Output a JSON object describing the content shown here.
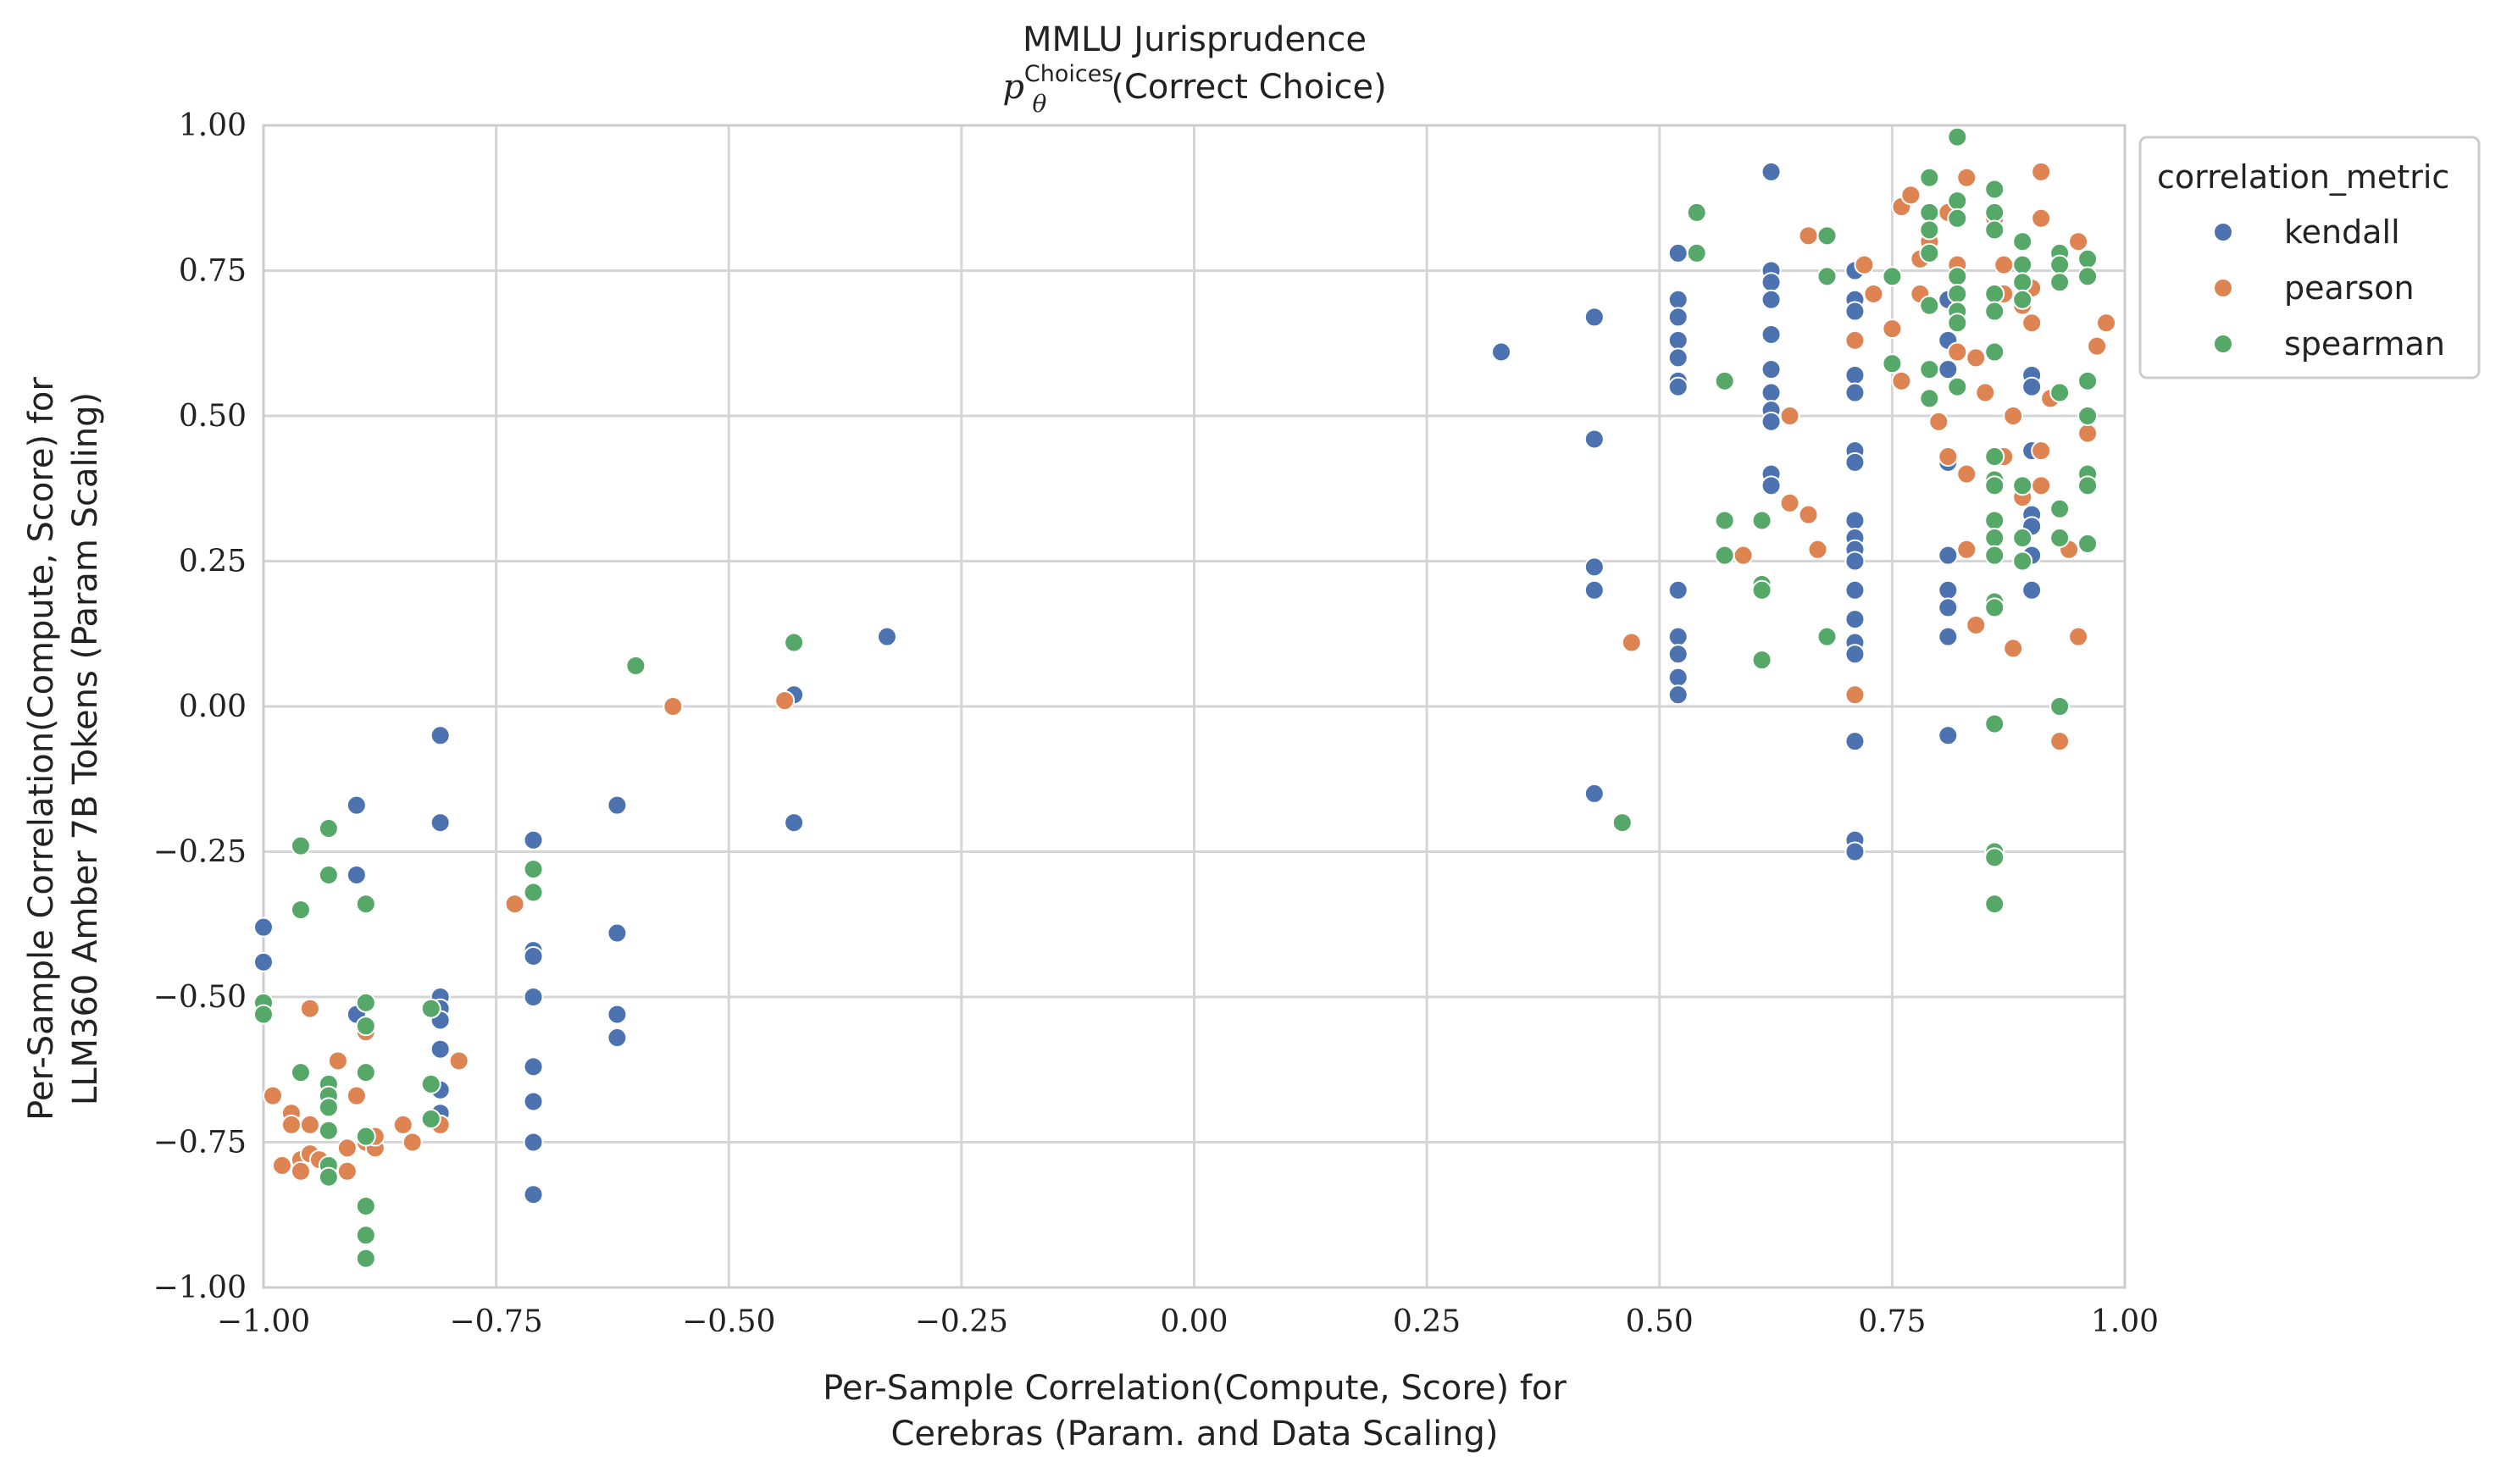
{
  "chart_data": {
    "type": "scatter",
    "title": "MMLU Jurisprudence",
    "subtitle_symbol": "p",
    "subtitle_subscript": "θ",
    "subtitle_superscript": "Choices",
    "subtitle_text": "(Correct Choice)",
    "xlabel_lines": [
      "Per-Sample Correlation(Compute, Score) for",
      "Cerebras (Param. and Data Scaling)"
    ],
    "ylabel_lines": [
      "Per-Sample Correlation(Compute, Score) for",
      "LLM360 Amber 7B Tokens (Param Scaling)"
    ],
    "xlim": [
      -1.0,
      1.0
    ],
    "ylim": [
      -1.0,
      1.0
    ],
    "xticks": [
      -1.0,
      -0.75,
      -0.5,
      -0.25,
      0.0,
      0.25,
      0.5,
      0.75,
      1.0
    ],
    "yticks": [
      -1.0,
      -0.75,
      -0.5,
      -0.25,
      0.0,
      0.25,
      0.5,
      0.75,
      1.0
    ],
    "xtick_labels": [
      "−1.00",
      "−0.75",
      "−0.50",
      "−0.25",
      "0.00",
      "0.25",
      "0.50",
      "0.75",
      "1.00"
    ],
    "ytick_labels": [
      "−1.00",
      "−0.75",
      "−0.50",
      "−0.25",
      "0.00",
      "0.25",
      "0.50",
      "0.75",
      "1.00"
    ],
    "grid": true,
    "legend": {
      "title": "correlation_metric",
      "placement": "outside-top-right"
    },
    "series": [
      {
        "name": "kendall",
        "color": "#4c72b0",
        "points": [
          [
            -1.0,
            -0.38
          ],
          [
            -1.0,
            -0.44
          ],
          [
            -0.9,
            -0.17
          ],
          [
            -0.9,
            -0.29
          ],
          [
            -0.9,
            -0.53
          ],
          [
            -0.81,
            -0.05
          ],
          [
            -0.81,
            -0.2
          ],
          [
            -0.81,
            -0.5
          ],
          [
            -0.81,
            -0.52
          ],
          [
            -0.81,
            -0.54
          ],
          [
            -0.81,
            -0.59
          ],
          [
            -0.81,
            -0.66
          ],
          [
            -0.81,
            -0.7
          ],
          [
            -0.71,
            -0.23
          ],
          [
            -0.71,
            -0.42
          ],
          [
            -0.71,
            -0.43
          ],
          [
            -0.71,
            -0.5
          ],
          [
            -0.71,
            -0.62
          ],
          [
            -0.71,
            -0.68
          ],
          [
            -0.71,
            -0.75
          ],
          [
            -0.71,
            -0.84
          ],
          [
            -0.62,
            -0.17
          ],
          [
            -0.62,
            -0.39
          ],
          [
            -0.62,
            -0.53
          ],
          [
            -0.62,
            -0.57
          ],
          [
            -0.43,
            0.02
          ],
          [
            -0.43,
            -0.2
          ],
          [
            -0.33,
            0.12
          ],
          [
            0.33,
            0.61
          ],
          [
            0.43,
            0.67
          ],
          [
            0.43,
            0.46
          ],
          [
            0.43,
            0.24
          ],
          [
            0.43,
            0.2
          ],
          [
            0.43,
            -0.15
          ],
          [
            0.52,
            0.78
          ],
          [
            0.52,
            0.7
          ],
          [
            0.52,
            0.67
          ],
          [
            0.52,
            0.63
          ],
          [
            0.52,
            0.6
          ],
          [
            0.52,
            0.56
          ],
          [
            0.52,
            0.55
          ],
          [
            0.52,
            0.2
          ],
          [
            0.52,
            0.12
          ],
          [
            0.52,
            0.09
          ],
          [
            0.52,
            0.05
          ],
          [
            0.52,
            0.02
          ],
          [
            0.62,
            0.92
          ],
          [
            0.62,
            0.75
          ],
          [
            0.62,
            0.73
          ],
          [
            0.62,
            0.7
          ],
          [
            0.62,
            0.64
          ],
          [
            0.62,
            0.58
          ],
          [
            0.62,
            0.54
          ],
          [
            0.62,
            0.51
          ],
          [
            0.62,
            0.49
          ],
          [
            0.62,
            0.4
          ],
          [
            0.62,
            0.38
          ],
          [
            0.71,
            0.75
          ],
          [
            0.71,
            0.7
          ],
          [
            0.71,
            0.68
          ],
          [
            0.71,
            0.57
          ],
          [
            0.71,
            0.54
          ],
          [
            0.71,
            0.44
          ],
          [
            0.71,
            0.42
          ],
          [
            0.71,
            0.32
          ],
          [
            0.71,
            0.29
          ],
          [
            0.71,
            0.27
          ],
          [
            0.71,
            0.25
          ],
          [
            0.71,
            0.2
          ],
          [
            0.71,
            0.15
          ],
          [
            0.71,
            0.11
          ],
          [
            0.71,
            0.09
          ],
          [
            0.71,
            -0.06
          ],
          [
            0.71,
            -0.23
          ],
          [
            0.71,
            -0.25
          ],
          [
            0.81,
            0.7
          ],
          [
            0.81,
            0.63
          ],
          [
            0.81,
            0.58
          ],
          [
            0.81,
            0.42
          ],
          [
            0.81,
            0.26
          ],
          [
            0.81,
            0.2
          ],
          [
            0.81,
            0.17
          ],
          [
            0.81,
            0.12
          ],
          [
            0.81,
            -0.05
          ],
          [
            0.9,
            0.57
          ],
          [
            0.9,
            0.55
          ],
          [
            0.9,
            0.44
          ],
          [
            0.9,
            0.33
          ],
          [
            0.9,
            0.31
          ],
          [
            0.9,
            0.26
          ],
          [
            0.9,
            0.2
          ]
        ]
      },
      {
        "name": "pearson",
        "color": "#dd8452",
        "points": [
          [
            -0.99,
            -0.67
          ],
          [
            -0.98,
            -0.79
          ],
          [
            -0.97,
            -0.7
          ],
          [
            -0.97,
            -0.72
          ],
          [
            -0.96,
            -0.78
          ],
          [
            -0.96,
            -0.8
          ],
          [
            -0.95,
            -0.52
          ],
          [
            -0.95,
            -0.72
          ],
          [
            -0.95,
            -0.77
          ],
          [
            -0.94,
            -0.78
          ],
          [
            -0.93,
            -0.68
          ],
          [
            -0.92,
            -0.61
          ],
          [
            -0.91,
            -0.76
          ],
          [
            -0.91,
            -0.8
          ],
          [
            -0.9,
            -0.67
          ],
          [
            -0.89,
            -0.75
          ],
          [
            -0.89,
            -0.56
          ],
          [
            -0.88,
            -0.76
          ],
          [
            -0.88,
            -0.74
          ],
          [
            -0.85,
            -0.72
          ],
          [
            -0.84,
            -0.75
          ],
          [
            -0.81,
            -0.72
          ],
          [
            -0.79,
            -0.61
          ],
          [
            -0.73,
            -0.34
          ],
          [
            -0.56,
            0.0
          ],
          [
            -0.44,
            0.01
          ],
          [
            0.47,
            0.11
          ],
          [
            0.59,
            0.26
          ],
          [
            0.64,
            0.5
          ],
          [
            0.64,
            0.35
          ],
          [
            0.66,
            0.81
          ],
          [
            0.66,
            0.33
          ],
          [
            0.67,
            0.27
          ],
          [
            0.71,
            0.63
          ],
          [
            0.71,
            0.02
          ],
          [
            0.72,
            0.76
          ],
          [
            0.73,
            0.71
          ],
          [
            0.75,
            0.65
          ],
          [
            0.76,
            0.86
          ],
          [
            0.76,
            0.56
          ],
          [
            0.77,
            0.88
          ],
          [
            0.78,
            0.77
          ],
          [
            0.78,
            0.71
          ],
          [
            0.79,
            0.8
          ],
          [
            0.8,
            0.49
          ],
          [
            0.81,
            0.43
          ],
          [
            0.81,
            0.85
          ],
          [
            0.82,
            0.61
          ],
          [
            0.82,
            0.76
          ],
          [
            0.83,
            0.91
          ],
          [
            0.83,
            0.4
          ],
          [
            0.83,
            0.27
          ],
          [
            0.84,
            0.6
          ],
          [
            0.84,
            0.14
          ],
          [
            0.85,
            0.54
          ],
          [
            0.86,
            0.84
          ],
          [
            0.86,
            0.89
          ],
          [
            0.87,
            0.76
          ],
          [
            0.87,
            0.71
          ],
          [
            0.87,
            0.43
          ],
          [
            0.88,
            0.5
          ],
          [
            0.88,
            0.1
          ],
          [
            0.89,
            0.69
          ],
          [
            0.89,
            0.36
          ],
          [
            0.9,
            0.72
          ],
          [
            0.9,
            0.66
          ],
          [
            0.91,
            0.92
          ],
          [
            0.91,
            0.84
          ],
          [
            0.91,
            0.44
          ],
          [
            0.91,
            0.38
          ],
          [
            0.92,
            0.53
          ],
          [
            0.93,
            -0.06
          ],
          [
            0.93,
            0.34
          ],
          [
            0.94,
            0.27
          ],
          [
            0.95,
            0.8
          ],
          [
            0.95,
            0.12
          ],
          [
            0.96,
            0.47
          ],
          [
            0.97,
            0.62
          ],
          [
            0.98,
            0.66
          ]
        ]
      },
      {
        "name": "spearman",
        "color": "#55a868",
        "points": [
          [
            -1.0,
            -0.51
          ],
          [
            -1.0,
            -0.53
          ],
          [
            -0.96,
            -0.24
          ],
          [
            -0.96,
            -0.35
          ],
          [
            -0.96,
            -0.63
          ],
          [
            -0.93,
            -0.21
          ],
          [
            -0.93,
            -0.29
          ],
          [
            -0.93,
            -0.65
          ],
          [
            -0.93,
            -0.67
          ],
          [
            -0.93,
            -0.69
          ],
          [
            -0.93,
            -0.73
          ],
          [
            -0.93,
            -0.79
          ],
          [
            -0.93,
            -0.81
          ],
          [
            -0.89,
            -0.34
          ],
          [
            -0.89,
            -0.51
          ],
          [
            -0.89,
            -0.55
          ],
          [
            -0.89,
            -0.63
          ],
          [
            -0.89,
            -0.74
          ],
          [
            -0.89,
            -0.86
          ],
          [
            -0.89,
            -0.91
          ],
          [
            -0.89,
            -0.95
          ],
          [
            -0.82,
            -0.52
          ],
          [
            -0.82,
            -0.65
          ],
          [
            -0.82,
            -0.71
          ],
          [
            -0.71,
            -0.28
          ],
          [
            -0.71,
            -0.32
          ],
          [
            -0.6,
            0.07
          ],
          [
            -0.43,
            0.11
          ],
          [
            0.46,
            -0.2
          ],
          [
            0.54,
            0.85
          ],
          [
            0.54,
            0.78
          ],
          [
            0.57,
            0.56
          ],
          [
            0.57,
            0.32
          ],
          [
            0.57,
            0.26
          ],
          [
            0.61,
            0.32
          ],
          [
            0.61,
            0.21
          ],
          [
            0.61,
            0.2
          ],
          [
            0.61,
            0.08
          ],
          [
            0.68,
            0.81
          ],
          [
            0.68,
            0.74
          ],
          [
            0.68,
            0.12
          ],
          [
            0.75,
            0.74
          ],
          [
            0.75,
            0.59
          ],
          [
            0.79,
            0.91
          ],
          [
            0.79,
            0.85
          ],
          [
            0.79,
            0.82
          ],
          [
            0.79,
            0.78
          ],
          [
            0.79,
            0.69
          ],
          [
            0.79,
            0.58
          ],
          [
            0.79,
            0.53
          ],
          [
            0.82,
            0.98
          ],
          [
            0.82,
            0.87
          ],
          [
            0.82,
            0.84
          ],
          [
            0.82,
            0.74
          ],
          [
            0.82,
            0.71
          ],
          [
            0.82,
            0.68
          ],
          [
            0.82,
            0.66
          ],
          [
            0.82,
            0.55
          ],
          [
            0.86,
            0.89
          ],
          [
            0.86,
            0.85
          ],
          [
            0.86,
            0.82
          ],
          [
            0.86,
            0.71
          ],
          [
            0.86,
            0.68
          ],
          [
            0.86,
            0.61
          ],
          [
            0.86,
            0.43
          ],
          [
            0.86,
            0.39
          ],
          [
            0.86,
            0.38
          ],
          [
            0.86,
            0.32
          ],
          [
            0.86,
            0.29
          ],
          [
            0.86,
            0.26
          ],
          [
            0.86,
            0.18
          ],
          [
            0.86,
            0.17
          ],
          [
            0.86,
            -0.03
          ],
          [
            0.86,
            -0.25
          ],
          [
            0.86,
            -0.26
          ],
          [
            0.86,
            -0.34
          ],
          [
            0.89,
            0.8
          ],
          [
            0.89,
            0.76
          ],
          [
            0.89,
            0.73
          ],
          [
            0.89,
            0.7
          ],
          [
            0.89,
            0.38
          ],
          [
            0.89,
            0.29
          ],
          [
            0.89,
            0.25
          ],
          [
            0.93,
            0.78
          ],
          [
            0.93,
            0.76
          ],
          [
            0.93,
            0.73
          ],
          [
            0.93,
            0.54
          ],
          [
            0.93,
            0.34
          ],
          [
            0.93,
            0.29
          ],
          [
            0.93,
            0.0
          ],
          [
            0.96,
            0.77
          ],
          [
            0.96,
            0.74
          ],
          [
            0.96,
            0.56
          ],
          [
            0.96,
            0.5
          ],
          [
            0.96,
            0.4
          ],
          [
            0.96,
            0.38
          ],
          [
            0.96,
            0.28
          ]
        ]
      }
    ]
  }
}
